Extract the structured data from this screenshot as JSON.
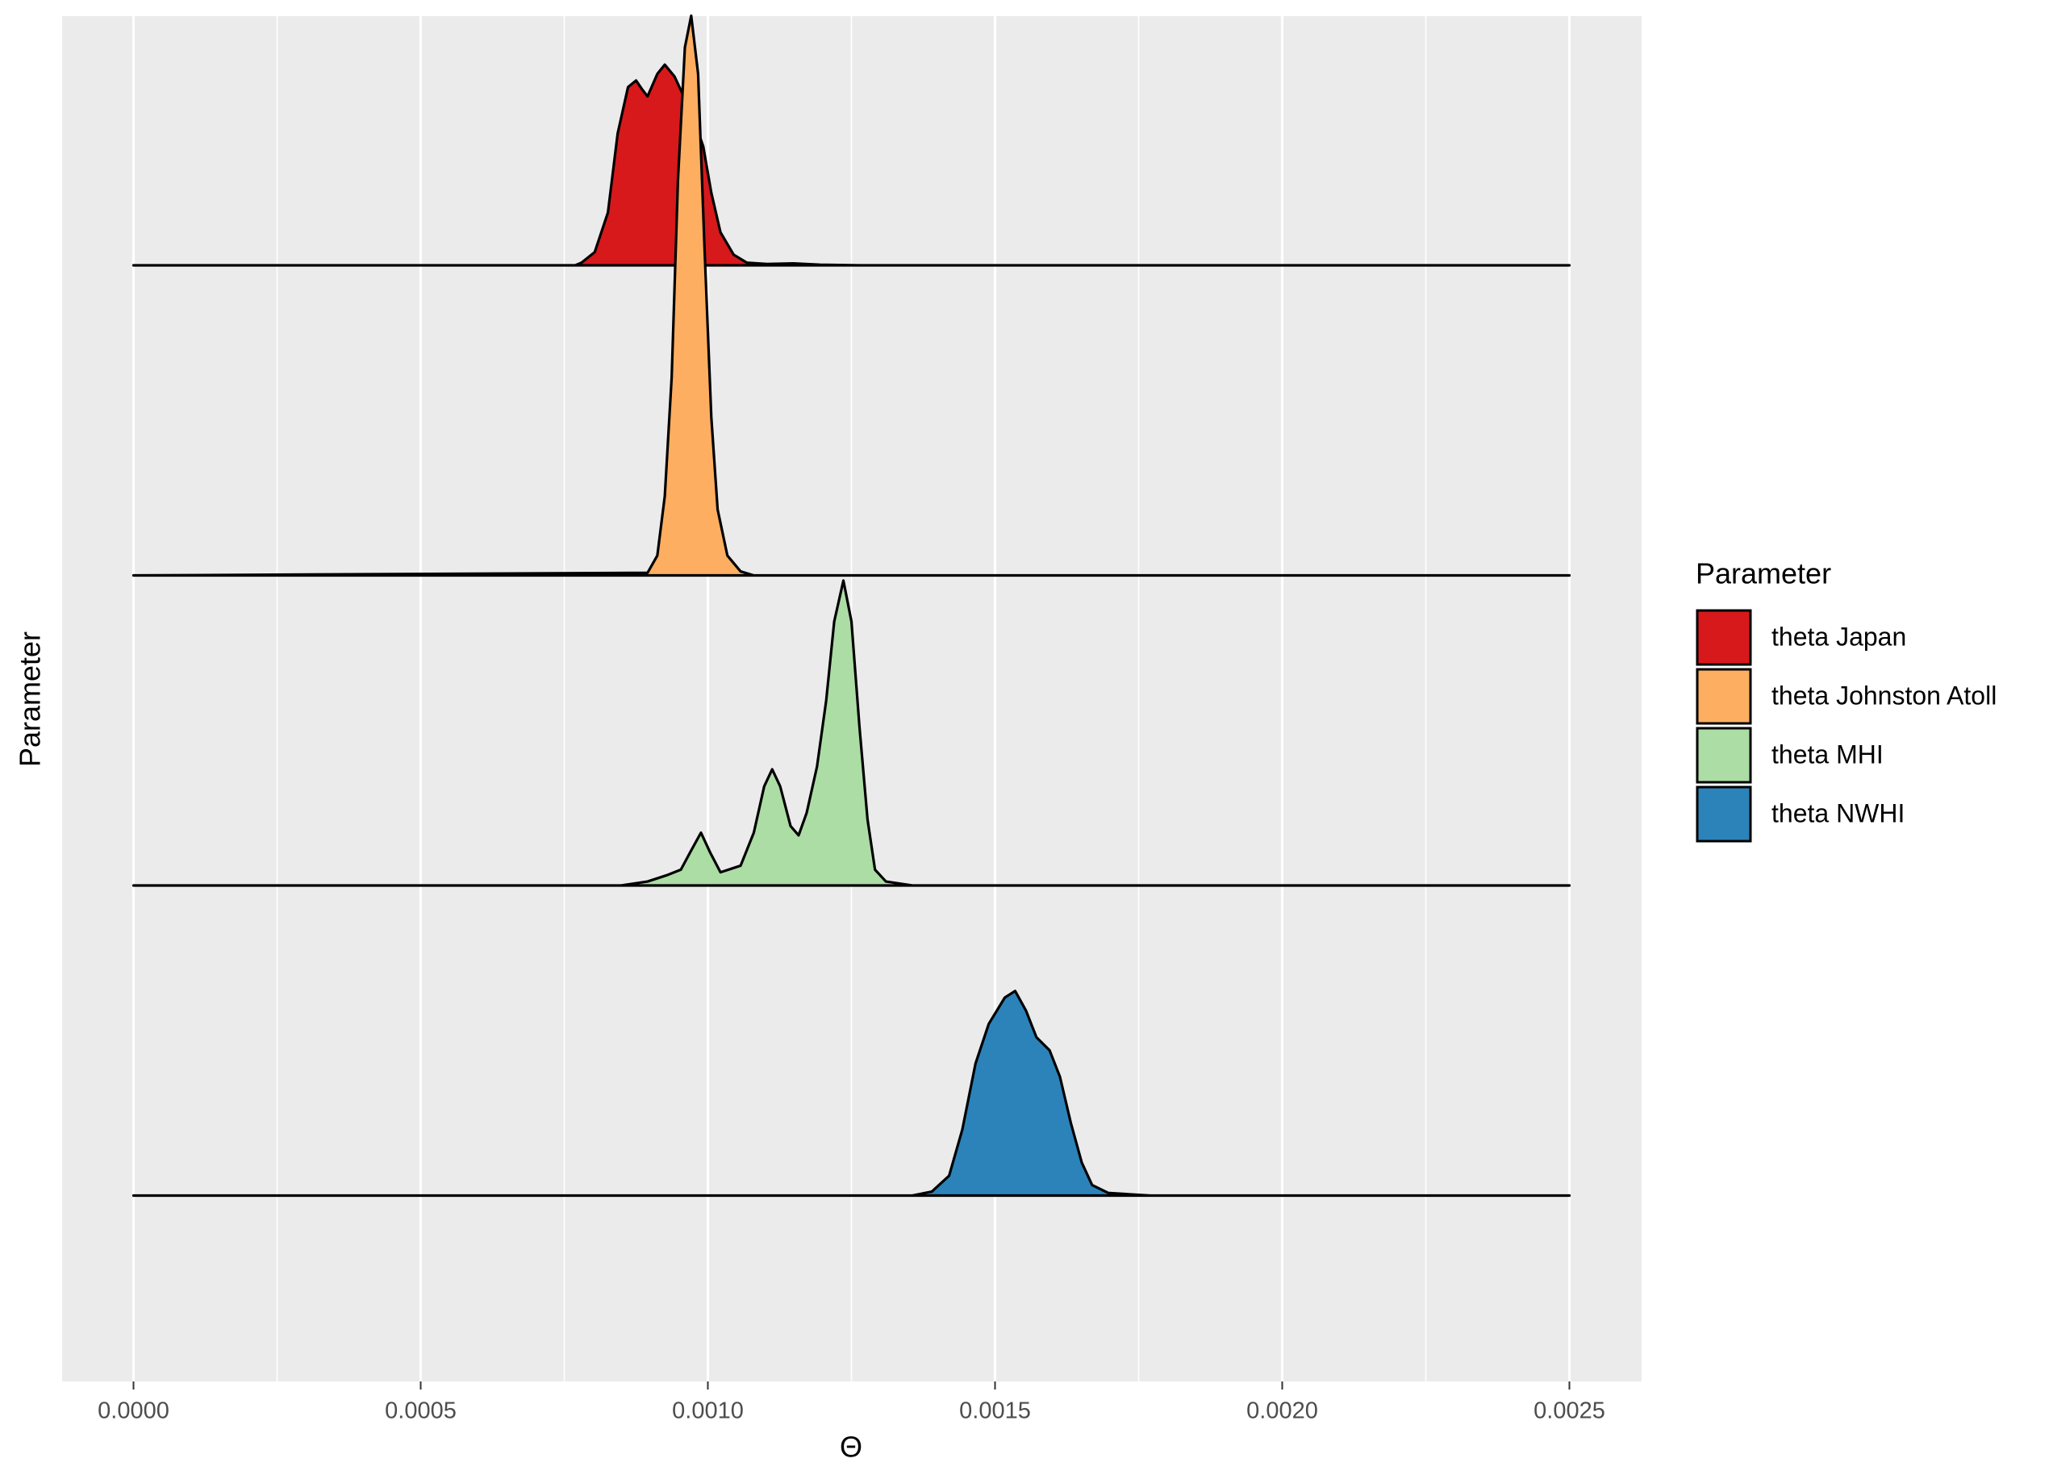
{
  "chart_data": {
    "type": "ridgeline",
    "x_label": "Θ",
    "y_label": "Parameter",
    "legend_title": "Parameter",
    "legend": "right",
    "grid": true,
    "xlim": [
      0,
      0.0025
    ],
    "xticks": [
      {
        "value": 0,
        "label": "0.0000"
      },
      {
        "value": 0.0005,
        "label": "0.0005"
      },
      {
        "value": 0.001,
        "label": "0.0010"
      },
      {
        "value": 0.0015,
        "label": "0.0015"
      },
      {
        "value": 0.002,
        "label": "0.0020"
      },
      {
        "value": 0.0025,
        "label": "0.0025"
      }
    ],
    "series": [
      {
        "name": "theta Japan",
        "color": "#d7191c",
        "x": [
          0,
          0.000769,
          0.00078,
          0.000803,
          0.000826,
          0.000843,
          0.000861,
          0.000875,
          0.000886,
          0.000895,
          0.000912,
          0.000925,
          0.000942,
          0.000958,
          0.000976,
          0.000992,
          0.001006,
          0.001022,
          0.001045,
          0.001068,
          0.001103,
          0.001149,
          0.001195,
          0.001264,
          0.0025
        ],
        "values": [
          0,
          0,
          94,
          472,
          1887,
          4717,
          6368,
          6604,
          6274,
          6038,
          6840,
          7170,
          6745,
          6038,
          5189,
          4245,
          2594,
          1179,
          377,
          94,
          47,
          71,
          24,
          0,
          0
        ]
      },
      {
        "name": "theta Johnston Atoll",
        "color": "#fdae61",
        "x": [
          0,
          0.000895,
          0.000912,
          0.000925,
          0.000937,
          0.000948,
          0.00096,
          0.000971,
          0.000983,
          0.000994,
          0.001006,
          0.001017,
          0.001034,
          0.001057,
          0.00108,
          0.0025
        ],
        "values": [
          0,
          94,
          708,
          2830,
          7075,
          14151,
          18868,
          20000,
          17925,
          11792,
          5660,
          2358,
          708,
          142,
          0,
          0
        ]
      },
      {
        "name": "theta MHI",
        "color": "#abdda4",
        "x": [
          0,
          0.000849,
          0.000895,
          0.00093,
          0.000953,
          0.000969,
          0.000988,
          0.001004,
          0.001022,
          0.001057,
          0.00108,
          0.001098,
          0.001112,
          0.001126,
          0.001144,
          0.001158,
          0.001172,
          0.00119,
          0.001206,
          0.00122,
          0.001236,
          0.00125,
          0.001264,
          0.001278,
          0.001291,
          0.00131,
          0.001356,
          0.0025
        ],
        "values": [
          0,
          0,
          142,
          377,
          566,
          1179,
          1887,
          1179,
          472,
          708,
          1887,
          3538,
          4151,
          3538,
          2123,
          1792,
          2594,
          4245,
          6604,
          9434,
          10896,
          9434,
          5660,
          2358,
          566,
          142,
          0,
          0
        ]
      },
      {
        "name": "theta NWHI",
        "color": "#2b83ba",
        "x": [
          0,
          0.001356,
          0.00139,
          0.00142,
          0.001443,
          0.001466,
          0.001489,
          0.001517,
          0.001535,
          0.001554,
          0.001572,
          0.001595,
          0.001613,
          0.001632,
          0.001651,
          0.001669,
          0.001697,
          0.00177,
          0.0025
        ],
        "values": [
          0,
          0,
          142,
          708,
          2358,
          4717,
          6132,
          7075,
          7311,
          6604,
          5660,
          5189,
          4245,
          2594,
          1179,
          377,
          94,
          0,
          0
        ]
      }
    ]
  }
}
